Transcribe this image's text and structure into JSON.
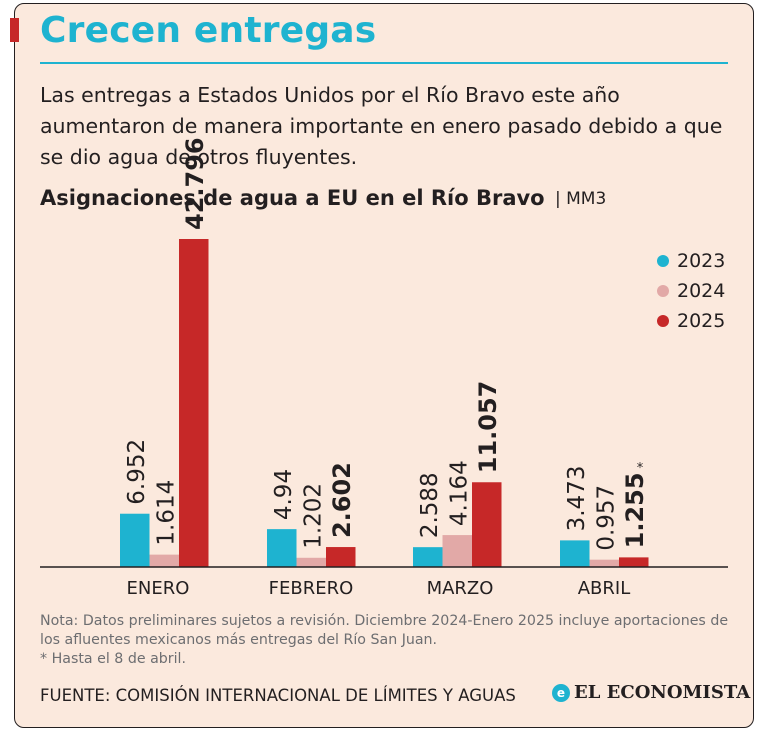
{
  "header": {
    "title": "Crecen entregas",
    "subtitle": "Las entregas a Estados Unidos por el Río Bravo este año aumentaron de manera importante en enero pasado debido a que se dio agua de otros fluyentes."
  },
  "chart_data": {
    "type": "bar",
    "title": "Asignaciones de agua a EU en el Río Bravo",
    "unit": "| MM3",
    "categories": [
      "ENERO",
      "FEBRERO",
      "MARZO",
      "ABRIL"
    ],
    "series": [
      {
        "name": "2023",
        "color": "#1eb3d0",
        "values": [
          6.952,
          4.94,
          2.588,
          3.473
        ],
        "labels": [
          "6.952",
          "4.94",
          "2.588",
          "3.473"
        ],
        "bold": false
      },
      {
        "name": "2024",
        "color": "#e2a9a7",
        "values": [
          1.614,
          1.202,
          4.164,
          0.957
        ],
        "labels": [
          "1.614",
          "1.202",
          "4.164",
          "0.957"
        ],
        "bold": false
      },
      {
        "name": "2025",
        "color": "#c62828",
        "values": [
          42.796,
          2.602,
          11.057,
          1.255
        ],
        "labels": [
          "42.796",
          "2.602",
          "11.057",
          "1.255"
        ],
        "bold": true
      }
    ],
    "footnote_marks": [
      {
        "category": "ABRIL",
        "series": "2025",
        "mark": "*"
      }
    ],
    "ylim": [
      0,
      42.796
    ],
    "grid": false,
    "legend_position": "top-right"
  },
  "footer": {
    "note": "Nota: Datos preliminares sujetos a revisión. Diciembre 2024-Enero 2025 incluye aportaciones de los afluentes mexicanos más entregas del Río San Juan.",
    "footnote": "* Hasta el 8 de abril.",
    "source": "FUENTE: COMISIÓN INTERNACIONAL DE LÍMITES Y AGUAS",
    "brand_icon": "e",
    "brand": "EL ECONOMISTA"
  },
  "colors": {
    "accent": "#1eb3d0",
    "brand_red": "#c62828",
    "background": "#fbe9dd"
  }
}
